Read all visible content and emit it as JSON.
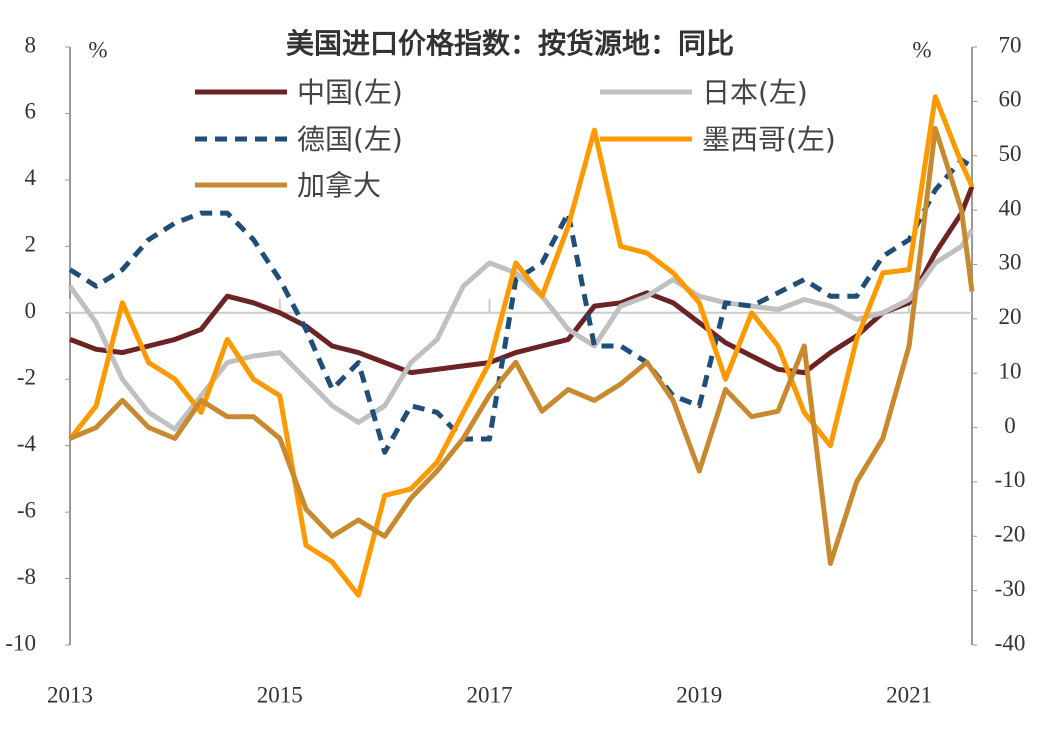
{
  "chart_data": {
    "type": "line",
    "title": "美国进口价格指数：按货源地：同比",
    "y_unit": "%",
    "y2_unit": "%",
    "x": [
      2013,
      2013.25,
      2013.5,
      2013.75,
      2014,
      2014.25,
      2014.5,
      2014.75,
      2015,
      2015.25,
      2015.5,
      2015.75,
      2016,
      2016.25,
      2016.5,
      2016.75,
      2017,
      2017.25,
      2017.5,
      2017.75,
      2018,
      2018.25,
      2018.5,
      2018.75,
      2019,
      2019.25,
      2019.5,
      2019.75,
      2020,
      2020.25,
      2020.5,
      2020.75,
      2021,
      2021.25,
      2021.5,
      2021.6
    ],
    "xlim": [
      2013,
      2021.6
    ],
    "xticks": [
      2013,
      2015,
      2017,
      2019,
      2021
    ],
    "ylim": [
      -10,
      8
    ],
    "yticks": [
      -10,
      -8,
      -6,
      -4,
      -2,
      0,
      2,
      4,
      6,
      8
    ],
    "y2lim": [
      -40,
      70
    ],
    "y2ticks": [
      -40,
      -30,
      -20,
      -10,
      0,
      10,
      20,
      30,
      40,
      50,
      60,
      70
    ],
    "series": [
      {
        "name": "中国(左)",
        "color": "#6b2423",
        "dash": false,
        "values": [
          -0.8,
          -1.1,
          -1.2,
          -1.0,
          -0.8,
          -0.5,
          0.5,
          0.3,
          0.0,
          -0.4,
          -1.0,
          -1.2,
          -1.5,
          -1.8,
          -1.7,
          -1.6,
          -1.5,
          -1.2,
          -1.0,
          -0.8,
          0.2,
          0.3,
          0.6,
          0.3,
          -0.3,
          -0.9,
          -1.3,
          -1.7,
          -1.8,
          -1.2,
          -0.7,
          0.0,
          0.3,
          1.8,
          3.0,
          3.8
        ]
      },
      {
        "name": "日本(左)",
        "color": "#c0c0c0",
        "dash": false,
        "values": [
          0.8,
          -0.3,
          -2.0,
          -3.0,
          -3.5,
          -2.5,
          -1.5,
          -1.3,
          -1.2,
          -2.0,
          -2.8,
          -3.3,
          -2.8,
          -1.5,
          -0.8,
          0.8,
          1.5,
          1.2,
          0.5,
          -0.5,
          -1.0,
          0.2,
          0.5,
          1.0,
          0.5,
          0.3,
          0.2,
          0.1,
          0.4,
          0.2,
          -0.2,
          0.0,
          0.4,
          1.5,
          2.0,
          2.5
        ]
      },
      {
        "name": "德国(左)",
        "color": "#1f4e79",
        "dash": true,
        "values": [
          1.3,
          0.8,
          1.3,
          2.2,
          2.7,
          3.0,
          3.0,
          2.2,
          1.0,
          -0.5,
          -2.3,
          -1.5,
          -4.2,
          -2.8,
          -3.0,
          -3.8,
          -3.8,
          1.0,
          1.5,
          3.0,
          -1.0,
          -1.0,
          -1.5,
          -2.5,
          -2.8,
          0.3,
          0.2,
          0.6,
          1.0,
          0.5,
          0.5,
          1.7,
          2.2,
          3.7,
          4.6,
          4.4
        ]
      },
      {
        "name": "墨西哥(左)",
        "color": "#ff9900",
        "dash": false,
        "values": [
          -3.8,
          -2.8,
          0.3,
          -1.5,
          -2.0,
          -3.0,
          -0.8,
          -2.0,
          -2.5,
          -7.0,
          -7.5,
          -8.5,
          -5.5,
          -5.3,
          -4.5,
          -3.0,
          -1.5,
          1.5,
          0.5,
          2.6,
          5.5,
          2.0,
          1.8,
          1.2,
          0.3,
          -2.0,
          0.0,
          -1.0,
          -3.0,
          -4.0,
          -0.8,
          1.2,
          1.3,
          6.5,
          4.5,
          3.8
        ]
      },
      {
        "name": "加拿大",
        "color": "#c8892f",
        "dash": false,
        "axis": "y2",
        "values": [
          -2,
          0,
          5,
          0,
          -2,
          5,
          2,
          2,
          -2,
          -15,
          -20,
          -17,
          -20,
          -13,
          -8,
          -2,
          6,
          12,
          3,
          7,
          5,
          8,
          12,
          5,
          -8,
          7,
          2,
          3,
          15,
          -25,
          -10,
          -2,
          15,
          55,
          40,
          25
        ]
      }
    ]
  }
}
